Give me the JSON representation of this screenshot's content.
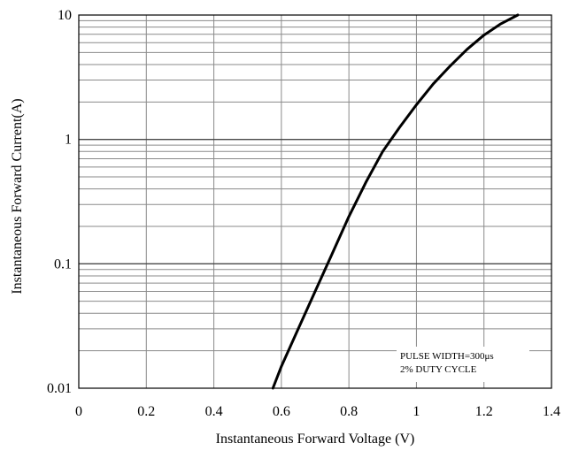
{
  "chart_data": {
    "type": "line",
    "title": "",
    "xlabel": "Instantaneous Forward Voltage (V)",
    "ylabel": "Instantaneous Forward Current(A)",
    "xlim": [
      0,
      1.4
    ],
    "ylim": [
      0.01,
      10
    ],
    "yscale": "log",
    "grid": true,
    "x_ticks": [
      "0",
      "0.2",
      "0.4",
      "0.6",
      "0.8",
      "1",
      "1.2",
      "1.4"
    ],
    "y_ticks": [
      "0.01",
      "0.1",
      "1",
      "10"
    ],
    "annotations": [
      "PULSE WIDTH=300μs",
      "2% DUTY CYCLE"
    ],
    "series": [
      {
        "x": [
          0.575,
          0.6,
          0.65,
          0.7,
          0.75,
          0.8,
          0.85,
          0.9,
          0.95,
          1.0,
          1.05,
          1.1,
          1.15,
          1.2,
          1.25,
          1.3
        ],
        "y": [
          0.01,
          0.015,
          0.03,
          0.06,
          0.12,
          0.24,
          0.45,
          0.8,
          1.25,
          1.9,
          2.8,
          3.9,
          5.3,
          6.9,
          8.5,
          10
        ],
        "color": "#000000"
      }
    ]
  }
}
